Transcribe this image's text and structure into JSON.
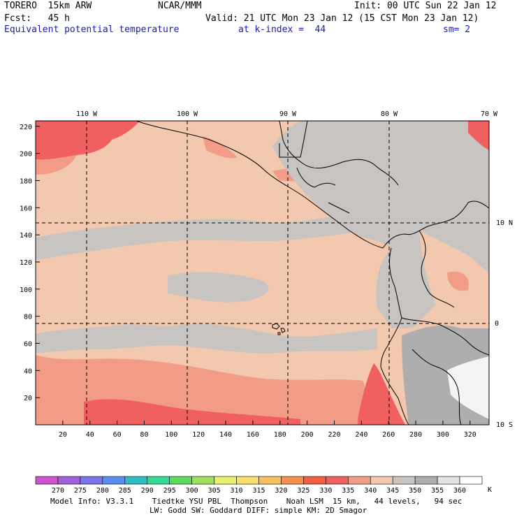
{
  "header": {
    "model": "TORERO  15km ARW",
    "center": "NCAR/MMM",
    "init": "Init: 00 UTC Sun 22 Jan 12",
    "fcst": "Fcst:   45 h",
    "valid": "Valid: 21 UTC Mon 23 Jan 12 (15 CST Mon 23 Jan 12)",
    "field": "Equivalent potential temperature",
    "level": "at k-index =  44",
    "smooth": "sm= 2"
  },
  "map": {
    "lon_labels": [
      "110 W",
      "100 W",
      "90 W",
      "80 W",
      "70 W"
    ],
    "lat_labels": [
      "10 N",
      "0",
      "10 S"
    ],
    "y_ticks": [
      "220",
      "200",
      "180",
      "160",
      "140",
      "120",
      "100",
      "80",
      "60",
      "40",
      "20"
    ],
    "x_ticks": [
      "20",
      "40",
      "60",
      "80",
      "100",
      "120",
      "140",
      "160",
      "180",
      "200",
      "220",
      "240",
      "260",
      "280",
      "300",
      "320"
    ],
    "colors": {
      "ocean_base": "#f2c8ae",
      "cool_330": "#f29c88",
      "warm_335": "#f06060",
      "gray_345": "#c8c4c2",
      "gray_350": "#aeaeae",
      "white_355": "#f4f4f4"
    }
  },
  "colorbar": {
    "unit": "K",
    "ticks": [
      "270",
      "275",
      "280",
      "285",
      "290",
      "295",
      "300",
      "305",
      "310",
      "315",
      "320",
      "325",
      "330",
      "335",
      "340",
      "345",
      "350",
      "355",
      "360"
    ],
    "colors": [
      "#cc55cc",
      "#a060d8",
      "#7878ec",
      "#5a8ef0",
      "#30bcc0",
      "#34d898",
      "#60d860",
      "#a0e060",
      "#e8f070",
      "#f6e070",
      "#f6c060",
      "#f49050",
      "#f06040",
      "#f06060",
      "#f29c88",
      "#f2c8ae",
      "#c8c4c2",
      "#aeaeae",
      "#e4e4e4",
      "#ffffff"
    ]
  },
  "footer": {
    "line1": "Model Info: V3.3.1    Tiedtke YSU PBL  Thompson    Noah LSM  15 km,   44 levels,   94 sec",
    "line2": "LW: Godd SW: Goddard DIFF: simple KM: 2D Smagor"
  }
}
